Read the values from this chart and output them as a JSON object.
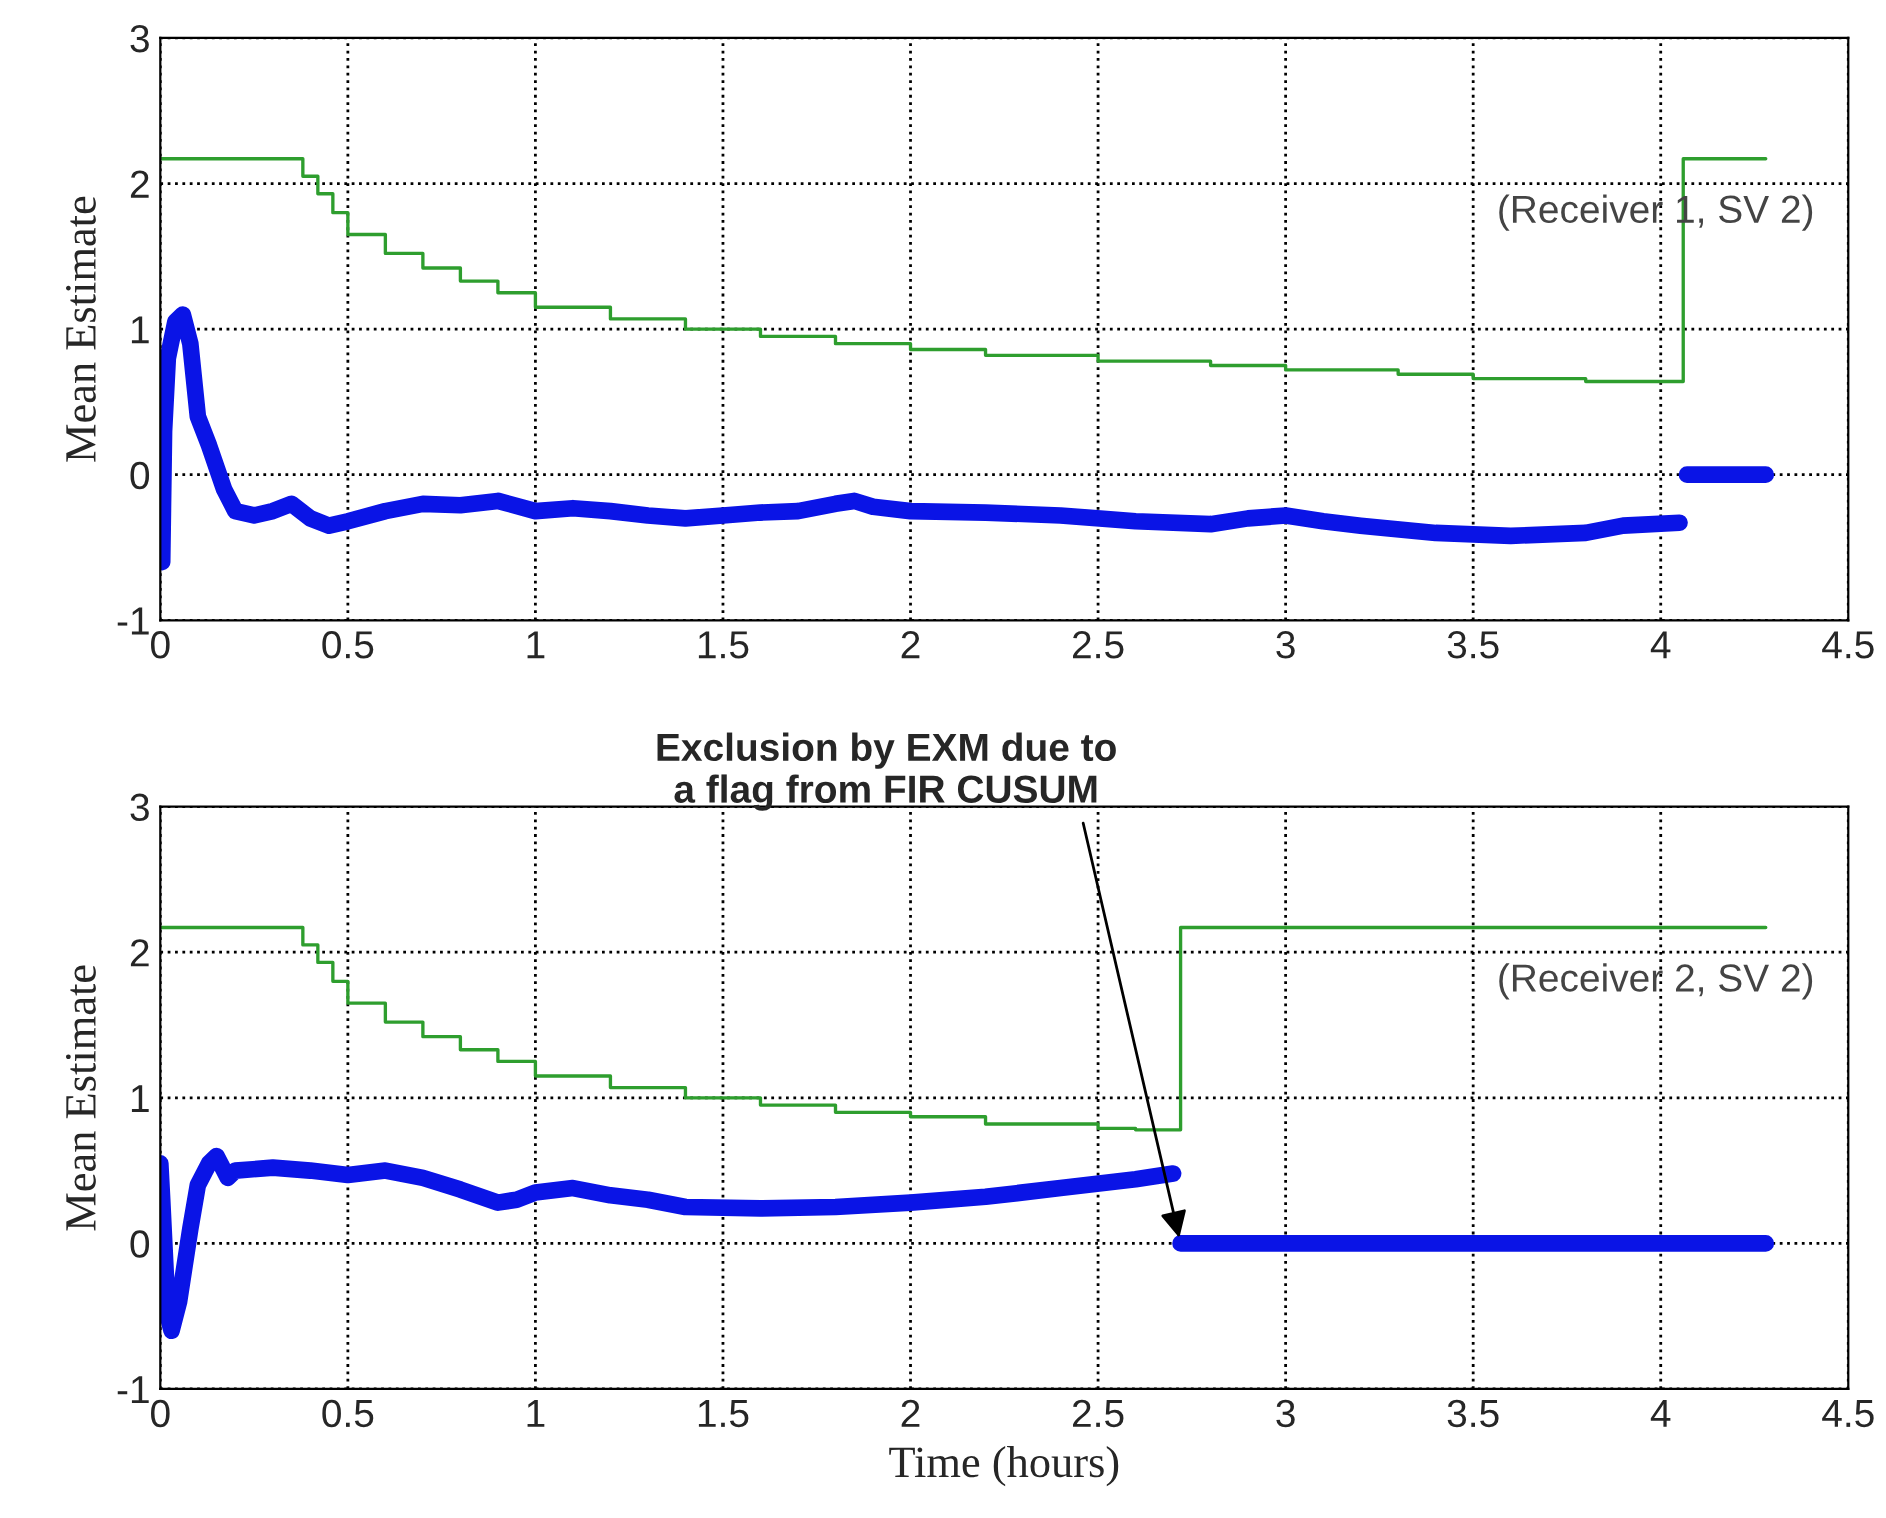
{
  "chart_data": [
    {
      "type": "line",
      "ylabel": "Mean Estimate",
      "xlim": [
        0,
        4.5
      ],
      "ylim": [
        -1,
        3
      ],
      "xticks": [
        0,
        0.5,
        1,
        1.5,
        2,
        2.5,
        3,
        3.5,
        4,
        4.5
      ],
      "yticks": [
        -1,
        0,
        1,
        2,
        3
      ],
      "grid": true,
      "line_style": "solid",
      "annotations": [
        "(Receiver 1, SV 2)"
      ],
      "series": [
        {
          "type": "step",
          "color": "#2e9e2e",
          "x": [
            0,
            0.38,
            0.42,
            0.46,
            0.5,
            0.6,
            0.7,
            0.8,
            0.9,
            1.0,
            1.2,
            1.4,
            1.6,
            1.8,
            2.0,
            2.2,
            2.5,
            2.8,
            3.0,
            3.3,
            3.5,
            3.8,
            4.06,
            4.28
          ],
          "values": [
            2.17,
            2.05,
            1.93,
            1.8,
            1.65,
            1.52,
            1.42,
            1.33,
            1.25,
            1.15,
            1.07,
            1.0,
            0.95,
            0.9,
            0.86,
            0.82,
            0.78,
            0.75,
            0.72,
            0.69,
            0.66,
            0.64,
            2.17,
            2.17
          ]
        },
        {
          "color": "#0a14e6",
          "x": [
            0,
            0.005,
            0.01,
            0.02,
            0.04,
            0.06,
            0.08,
            0.1,
            0.13,
            0.17,
            0.2,
            0.25,
            0.3,
            0.35,
            0.4,
            0.45,
            0.5,
            0.6,
            0.7,
            0.8,
            0.9,
            1.0,
            1.1,
            1.2,
            1.3,
            1.4,
            1.5,
            1.6,
            1.7,
            1.8,
            1.85,
            1.9,
            2.0,
            2.2,
            2.4,
            2.6,
            2.8,
            2.9,
            3.0,
            3.1,
            3.2,
            3.4,
            3.6,
            3.8,
            3.9,
            4.05,
            4.06,
            4.07,
            4.28
          ],
          "values": [
            -0.5,
            -0.6,
            0.3,
            0.8,
            1.05,
            1.1,
            0.9,
            0.4,
            0.2,
            -0.1,
            -0.25,
            -0.28,
            -0.25,
            -0.2,
            -0.3,
            -0.35,
            -0.32,
            -0.25,
            -0.2,
            -0.21,
            -0.18,
            -0.25,
            -0.23,
            -0.25,
            -0.28,
            -0.3,
            -0.28,
            -0.26,
            -0.25,
            -0.2,
            -0.18,
            -0.22,
            -0.25,
            -0.26,
            -0.28,
            -0.32,
            -0.34,
            -0.3,
            -0.28,
            -0.32,
            -0.35,
            -0.4,
            -0.42,
            -0.4,
            -0.35,
            -0.33,
            null,
            0,
            0
          ]
        }
      ]
    },
    {
      "type": "line",
      "ylabel": "Mean Estimate",
      "xlabel": "Time (hours)",
      "xlim": [
        0,
        4.5
      ],
      "ylim": [
        -1,
        3
      ],
      "xticks": [
        0,
        0.5,
        1,
        1.5,
        2,
        2.5,
        3,
        3.5,
        4,
        4.5
      ],
      "yticks": [
        -1,
        0,
        1,
        2,
        3
      ],
      "grid": true,
      "line_style": "solid",
      "annotations": [
        "(Receiver 2, SV 2)",
        {
          "text": "Exclusion by EXM due to\na flag from FIR CUSUM",
          "x": 2.72,
          "y": 0
        }
      ],
      "series": [
        {
          "type": "step",
          "color": "#2e9e2e",
          "x": [
            0,
            0.38,
            0.42,
            0.46,
            0.5,
            0.6,
            0.7,
            0.8,
            0.9,
            1.0,
            1.2,
            1.4,
            1.6,
            1.8,
            2.0,
            2.2,
            2.5,
            2.6,
            2.72,
            4.28
          ],
          "values": [
            2.17,
            2.05,
            1.93,
            1.8,
            1.65,
            1.52,
            1.42,
            1.33,
            1.25,
            1.15,
            1.07,
            1.0,
            0.95,
            0.9,
            0.87,
            0.82,
            0.79,
            0.78,
            2.17,
            2.17
          ]
        },
        {
          "color": "#0a14e6",
          "x": [
            0,
            0.005,
            0.02,
            0.03,
            0.05,
            0.08,
            0.1,
            0.13,
            0.15,
            0.18,
            0.2,
            0.3,
            0.4,
            0.5,
            0.6,
            0.7,
            0.8,
            0.9,
            0.95,
            1.0,
            1.1,
            1.2,
            1.3,
            1.4,
            1.6,
            1.8,
            2.0,
            2.2,
            2.4,
            2.6,
            2.7,
            2.71,
            2.72,
            4.28
          ],
          "values": [
            0.55,
            0.3,
            -0.5,
            -0.6,
            -0.4,
            0.1,
            0.4,
            0.55,
            0.6,
            0.45,
            0.5,
            0.52,
            0.5,
            0.47,
            0.5,
            0.45,
            0.37,
            0.28,
            0.3,
            0.35,
            0.38,
            0.33,
            0.3,
            0.25,
            0.24,
            0.25,
            0.28,
            0.32,
            0.38,
            0.44,
            0.48,
            null,
            0,
            0
          ]
        }
      ]
    }
  ]
}
